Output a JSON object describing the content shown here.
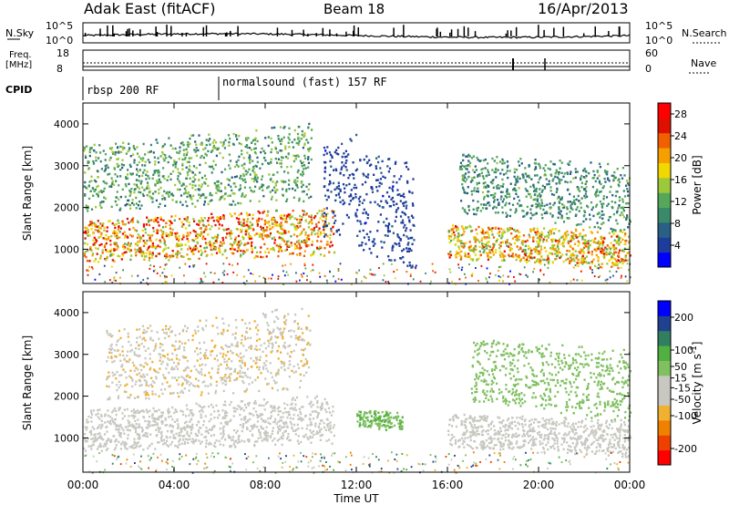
{
  "header": {
    "title": "Adak East (fitACF)",
    "beam": "Beam 18",
    "date": "16/Apr/2013"
  },
  "noise_panel": {
    "left_label": "N.Sky",
    "right_label": "N.Search",
    "y_ticks": [
      "10^5",
      "10^0"
    ]
  },
  "freq_panel": {
    "left_label_1": "Freq.",
    "left_label_2": "[MHz]",
    "left_ticks": [
      "18",
      "8"
    ],
    "right_label": "Nave",
    "right_ticks": [
      "60",
      "0"
    ]
  },
  "cpid_panel": {
    "label": "CPID",
    "programs": [
      "rbsp 200 RF",
      "normalsound (fast) 157 RF"
    ]
  },
  "chart_data": [
    {
      "type": "heatmap",
      "panel": "power",
      "ylabel": "Slant Range [km]",
      "y_ticks": [
        "4000",
        "3000",
        "2000",
        "1000"
      ],
      "ylim": [
        180,
        4500
      ],
      "xlim": [
        "00:00",
        "24:00"
      ],
      "colorbar": {
        "label": "Power [dB]",
        "ticks": [
          "28",
          "24",
          "20",
          "16",
          "12",
          "8",
          "4"
        ],
        "range": [
          0,
          30
        ],
        "colors": [
          "#0000ff",
          "#1e3c9c",
          "#2a5f86",
          "#3a8a6a",
          "#55a85a",
          "#9cc83a",
          "#f0d800",
          "#f5a000",
          "#f06000",
          "#e01000",
          "#ff0000"
        ]
      },
      "features": [
        {
          "name": "dense scatter band",
          "start": "00:00",
          "end": "11:00",
          "range_km": [
            700,
            1700
          ],
          "peak_db": 28
        },
        {
          "name": "upper band",
          "start": "00:00",
          "end": "10:00",
          "range_km": [
            1900,
            3500
          ],
          "peak_db": 16
        },
        {
          "name": "midday patch",
          "start": "10:30",
          "end": "14:30",
          "range_km": [
            1300,
            3500
          ],
          "peak_db": 6
        },
        {
          "name": "evening band",
          "start": "16:00",
          "end": "24:00",
          "range_km": [
            800,
            1600
          ],
          "peak_db": 26
        },
        {
          "name": "evening upper band",
          "start": "16:30",
          "end": "24:00",
          "range_km": [
            1900,
            3300
          ],
          "peak_db": 14
        }
      ]
    },
    {
      "type": "heatmap",
      "panel": "velocity",
      "ylabel": "Slant Range [km]",
      "y_ticks": [
        "4000",
        "3000",
        "2000",
        "1000"
      ],
      "ylim": [
        180,
        4500
      ],
      "xlabel": "Time UT",
      "x_ticks": [
        "00:00",
        "04:00",
        "08:00",
        "12:00",
        "16:00",
        "20:00",
        "00:00"
      ],
      "colorbar": {
        "label": "Velocity [m s",
        "label_exponent": "-1",
        "label_end": "]",
        "ticks": [
          "200",
          "100",
          "50",
          "15",
          "-15",
          "-50",
          "-100",
          "-200"
        ],
        "range": [
          -250,
          250
        ],
        "colors": [
          "#ff0000",
          "#f04000",
          "#f08000",
          "#f0b030",
          "#c8c8c0",
          "#c8c8c0",
          "#80c060",
          "#50b040",
          "#308060",
          "#204090",
          "#0000ff"
        ]
      },
      "features": [
        {
          "name": "ground scatter (near zero)",
          "start": "00:00",
          "end": "11:00",
          "range_km": [
            700,
            1700
          ],
          "velocity": 0
        },
        {
          "name": "westward flow",
          "start": "01:00",
          "end": "10:00",
          "range_km": [
            1900,
            3600
          ],
          "velocity": -60
        },
        {
          "name": "eastward patch",
          "start": "12:00",
          "end": "14:00",
          "range_km": [
            1300,
            1700
          ],
          "velocity": 60
        },
        {
          "name": "evening positive flow",
          "start": "17:00",
          "end": "24:00",
          "range_km": [
            1900,
            3400
          ],
          "velocity": 45
        },
        {
          "name": "evening ground scatter",
          "start": "16:00",
          "end": "24:00",
          "range_km": [
            800,
            1600
          ],
          "velocity": 0
        }
      ]
    }
  ]
}
